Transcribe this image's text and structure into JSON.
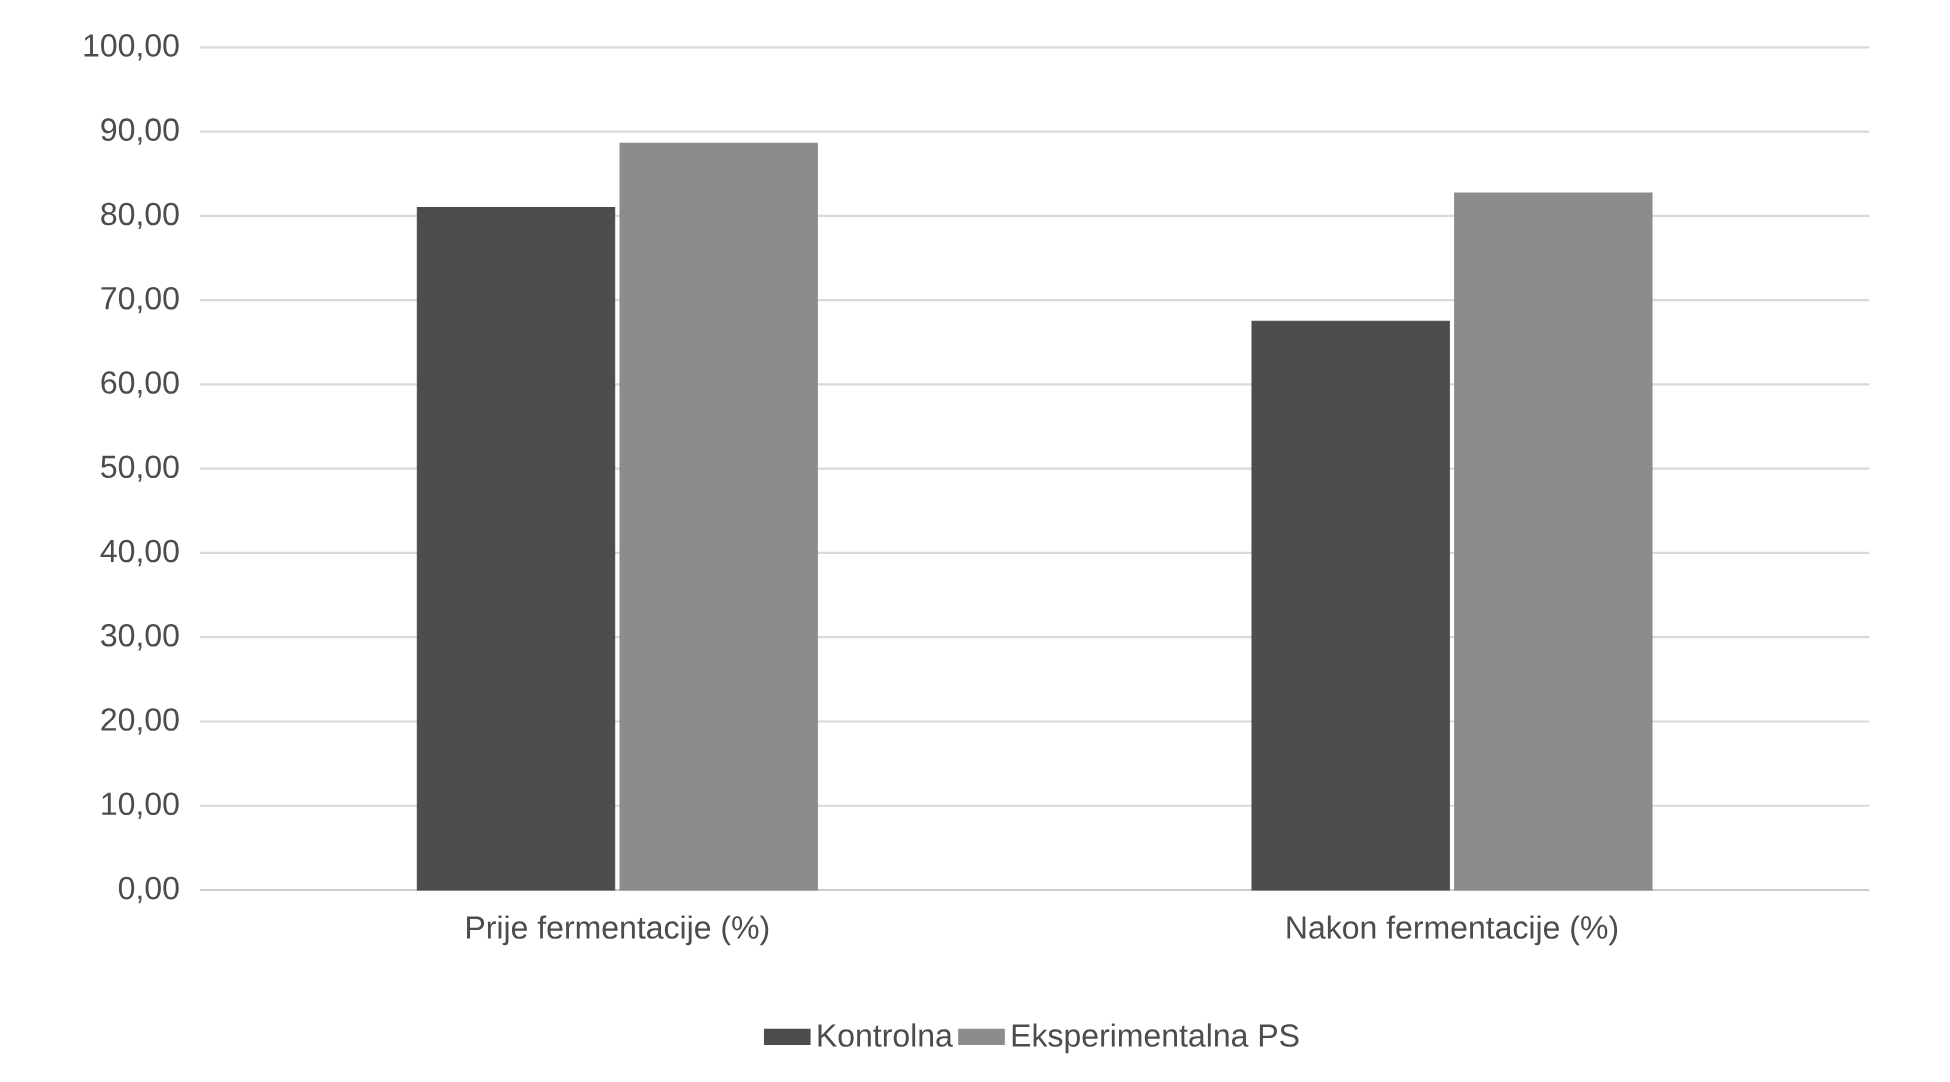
{
  "chart_data": {
    "type": "bar",
    "categories": [
      "Prije fermentacije (%)",
      "Nakon fermentacije (%)"
    ],
    "series": [
      {
        "name": "Kontrolna",
        "color": "#4d4d4d",
        "values": [
          81.0,
          67.5
        ]
      },
      {
        "name": "Eksperimentalna PS",
        "color": "#8c8c8c",
        "values": [
          88.6,
          82.7
        ]
      }
    ],
    "ylim": [
      0,
      100
    ],
    "yticks": [
      {
        "value": 0,
        "label": "0,00"
      },
      {
        "value": 10,
        "label": "10,00"
      },
      {
        "value": 20,
        "label": "20,00"
      },
      {
        "value": 30,
        "label": "30,00"
      },
      {
        "value": 40,
        "label": "40,00"
      },
      {
        "value": 50,
        "label": "50,00"
      },
      {
        "value": 60,
        "label": "60,00"
      },
      {
        "value": 70,
        "label": "70,00"
      },
      {
        "value": 80,
        "label": "80,00"
      },
      {
        "value": 90,
        "label": "90,00"
      },
      {
        "value": 100,
        "label": "100,00"
      }
    ],
    "grid": "y",
    "legend": "bottom"
  }
}
